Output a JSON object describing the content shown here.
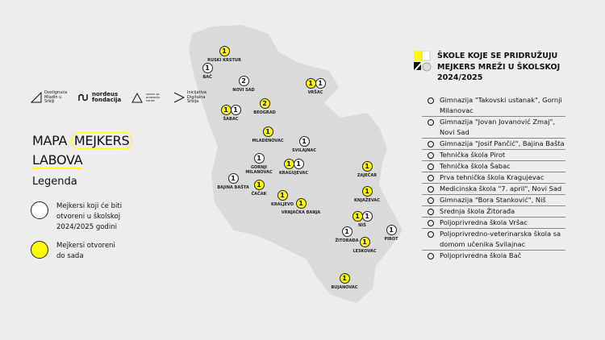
{
  "logos": [
    {
      "name": "Dostignuća Mladih u Srbiji",
      "text": "Dostignuća Mladih u Srbiji"
    },
    {
      "name": "Nordeus fondacija",
      "text": "nordeus fondacija"
    },
    {
      "name": "Centar za promociju nauke",
      "text": "centar za promociju nauke"
    },
    {
      "name": "Inicijativa Digitalna Srbija",
      "text": "Inicijativa Digitalna Srbija"
    }
  ],
  "title": {
    "part1": "MAPA",
    "part2": "MEJKERS",
    "part3": "LABOVA"
  },
  "legend": {
    "title": "Legenda",
    "items": [
      {
        "color": "#ffffff",
        "text": "Mejkersi koji će biti otvoreni u školskoj 2024/2025 godini"
      },
      {
        "color": "#ffff00",
        "text": "Mejkersi otvoreni do sada"
      }
    ]
  },
  "colors": {
    "open": "#ffff00",
    "upcoming": "#ffffff",
    "map": "#dadada",
    "background": "#ededed"
  },
  "cities": [
    {
      "name": "RUSKI KRSTUR",
      "yellow": "1",
      "white": null
    },
    {
      "name": "BAČ",
      "yellow": null,
      "white": "1"
    },
    {
      "name": "NOVI SAD",
      "yellow": null,
      "white": "2"
    },
    {
      "name": "VRŠAC",
      "yellow": "1",
      "white": "1"
    },
    {
      "name": "ŠABAC",
      "yellow": "1",
      "white": "1"
    },
    {
      "name": "BEOGRAD",
      "yellow": "2",
      "white": null
    },
    {
      "name": "MLADENOVAC",
      "yellow": "1",
      "white": null
    },
    {
      "name": "SVILAJNAC",
      "yellow": null,
      "white": "1"
    },
    {
      "name": "GORNJI MILANOVAC",
      "yellow": null,
      "white": "1"
    },
    {
      "name": "KRAGUJEVAC",
      "yellow": "1",
      "white": "1"
    },
    {
      "name": "BAJINA BAŠTA",
      "yellow": null,
      "white": "1"
    },
    {
      "name": "ČAČAK",
      "yellow": "1",
      "white": null
    },
    {
      "name": "KRALJEVO",
      "yellow": "1",
      "white": null
    },
    {
      "name": "VRNJAČKA BANJA",
      "yellow": "1",
      "white": null
    },
    {
      "name": "ZAJEČAR",
      "yellow": "1",
      "white": null
    },
    {
      "name": "KNJAŽEVAC",
      "yellow": "1",
      "white": null
    },
    {
      "name": "NIŠ",
      "yellow": "1",
      "white": "1"
    },
    {
      "name": "PIROT",
      "yellow": null,
      "white": "1"
    },
    {
      "name": "ŽITORAĐA",
      "yellow": null,
      "white": "1"
    },
    {
      "name": "LESKOVAC",
      "yellow": "1",
      "white": null
    },
    {
      "name": "BUJANOVAC",
      "yellow": "1",
      "white": null
    }
  ],
  "schools": {
    "title": "ŠKOLE KOJE SE PRIDRUŽUJU MEJKERS MREŽI U ŠKOLSKOJ 2024/2025",
    "items": [
      "Gimnazija \"Takovski ustanak\", Gornji Milanovac",
      "Gimnazija \"Jovan Jovanović Zmaj\", Novi Sad",
      "Gimnazija \"Josif Pančić\", Bajina Bašta",
      "Tehnička škola Pirot",
      "Tehnička škola Šabac",
      "Prva tehnička škola Kragujevac",
      "Medicinska škola \"7. april\", Novi Sad",
      "Gimnazija \"Bora Stanković\", Niš",
      "Srednja škola Žitorađa",
      "Poljoprivredna škola Vršac",
      "Poljoprivredno-veterinarska škola sa domom učenika Svilajnac",
      "Poljoprivredna škola Bač"
    ]
  }
}
